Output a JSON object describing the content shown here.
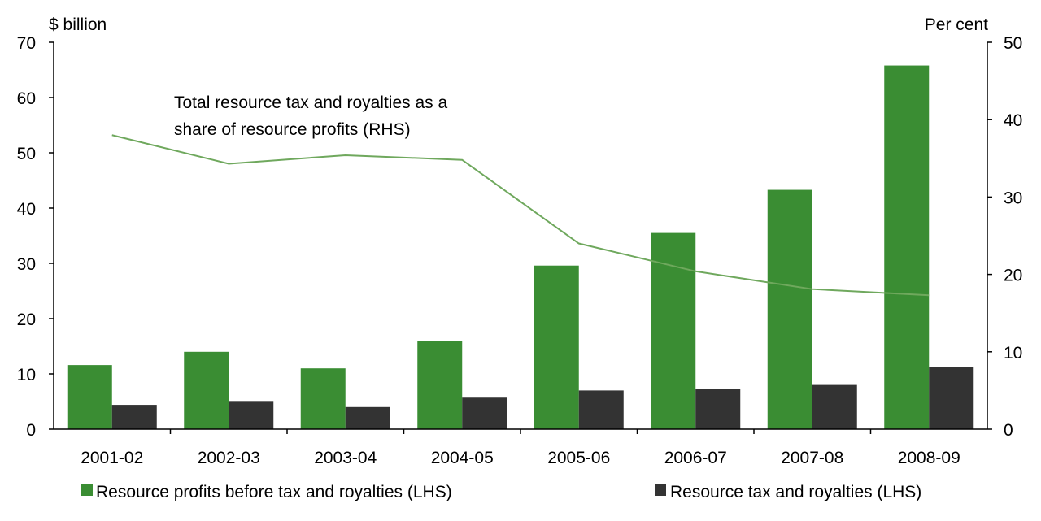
{
  "chart_data": {
    "type": "bar",
    "categories": [
      "2001-02",
      "2002-03",
      "2003-04",
      "2004-05",
      "2005-06",
      "2006-07",
      "2007-08",
      "2008-09"
    ],
    "series": [
      {
        "name": "Resource profits before tax and royalties (LHS)",
        "kind": "bar",
        "axis": "left",
        "color": "#3a8d33",
        "values": [
          11.6,
          14.0,
          11.0,
          16.0,
          29.6,
          35.5,
          43.3,
          65.8
        ]
      },
      {
        "name": "Resource tax and royalties (LHS)",
        "kind": "bar",
        "axis": "left",
        "color": "#333333",
        "values": [
          4.4,
          5.1,
          4.0,
          5.7,
          7.0,
          7.3,
          8.0,
          11.3
        ]
      },
      {
        "name": "Total resource tax and royalties as a share of resource profits (RHS)",
        "kind": "line",
        "axis": "right",
        "color": "#6fa85d",
        "values": [
          38.0,
          34.3,
          35.4,
          34.8,
          24.0,
          20.4,
          18.1,
          17.3
        ]
      }
    ],
    "left_axis": {
      "label": "$ billion",
      "range": [
        0,
        70
      ],
      "ticks": [
        "0",
        "10",
        "20",
        "30",
        "40",
        "50",
        "60",
        "70"
      ]
    },
    "right_axis": {
      "label": "Per cent",
      "range": [
        0,
        50
      ],
      "ticks": [
        "0",
        "10",
        "20",
        "30",
        "40",
        "50"
      ]
    },
    "annotation": {
      "lines": [
        "Total resource tax and royalties as a",
        "share of resource profits (RHS)"
      ]
    },
    "grid": false,
    "legend": {
      "placement": "bottom",
      "items": [
        {
          "label": "Resource profits before tax and royalties (LHS)",
          "color": "#3a8d33"
        },
        {
          "label": "Resource tax and royalties (LHS)",
          "color": "#333333"
        }
      ]
    }
  }
}
